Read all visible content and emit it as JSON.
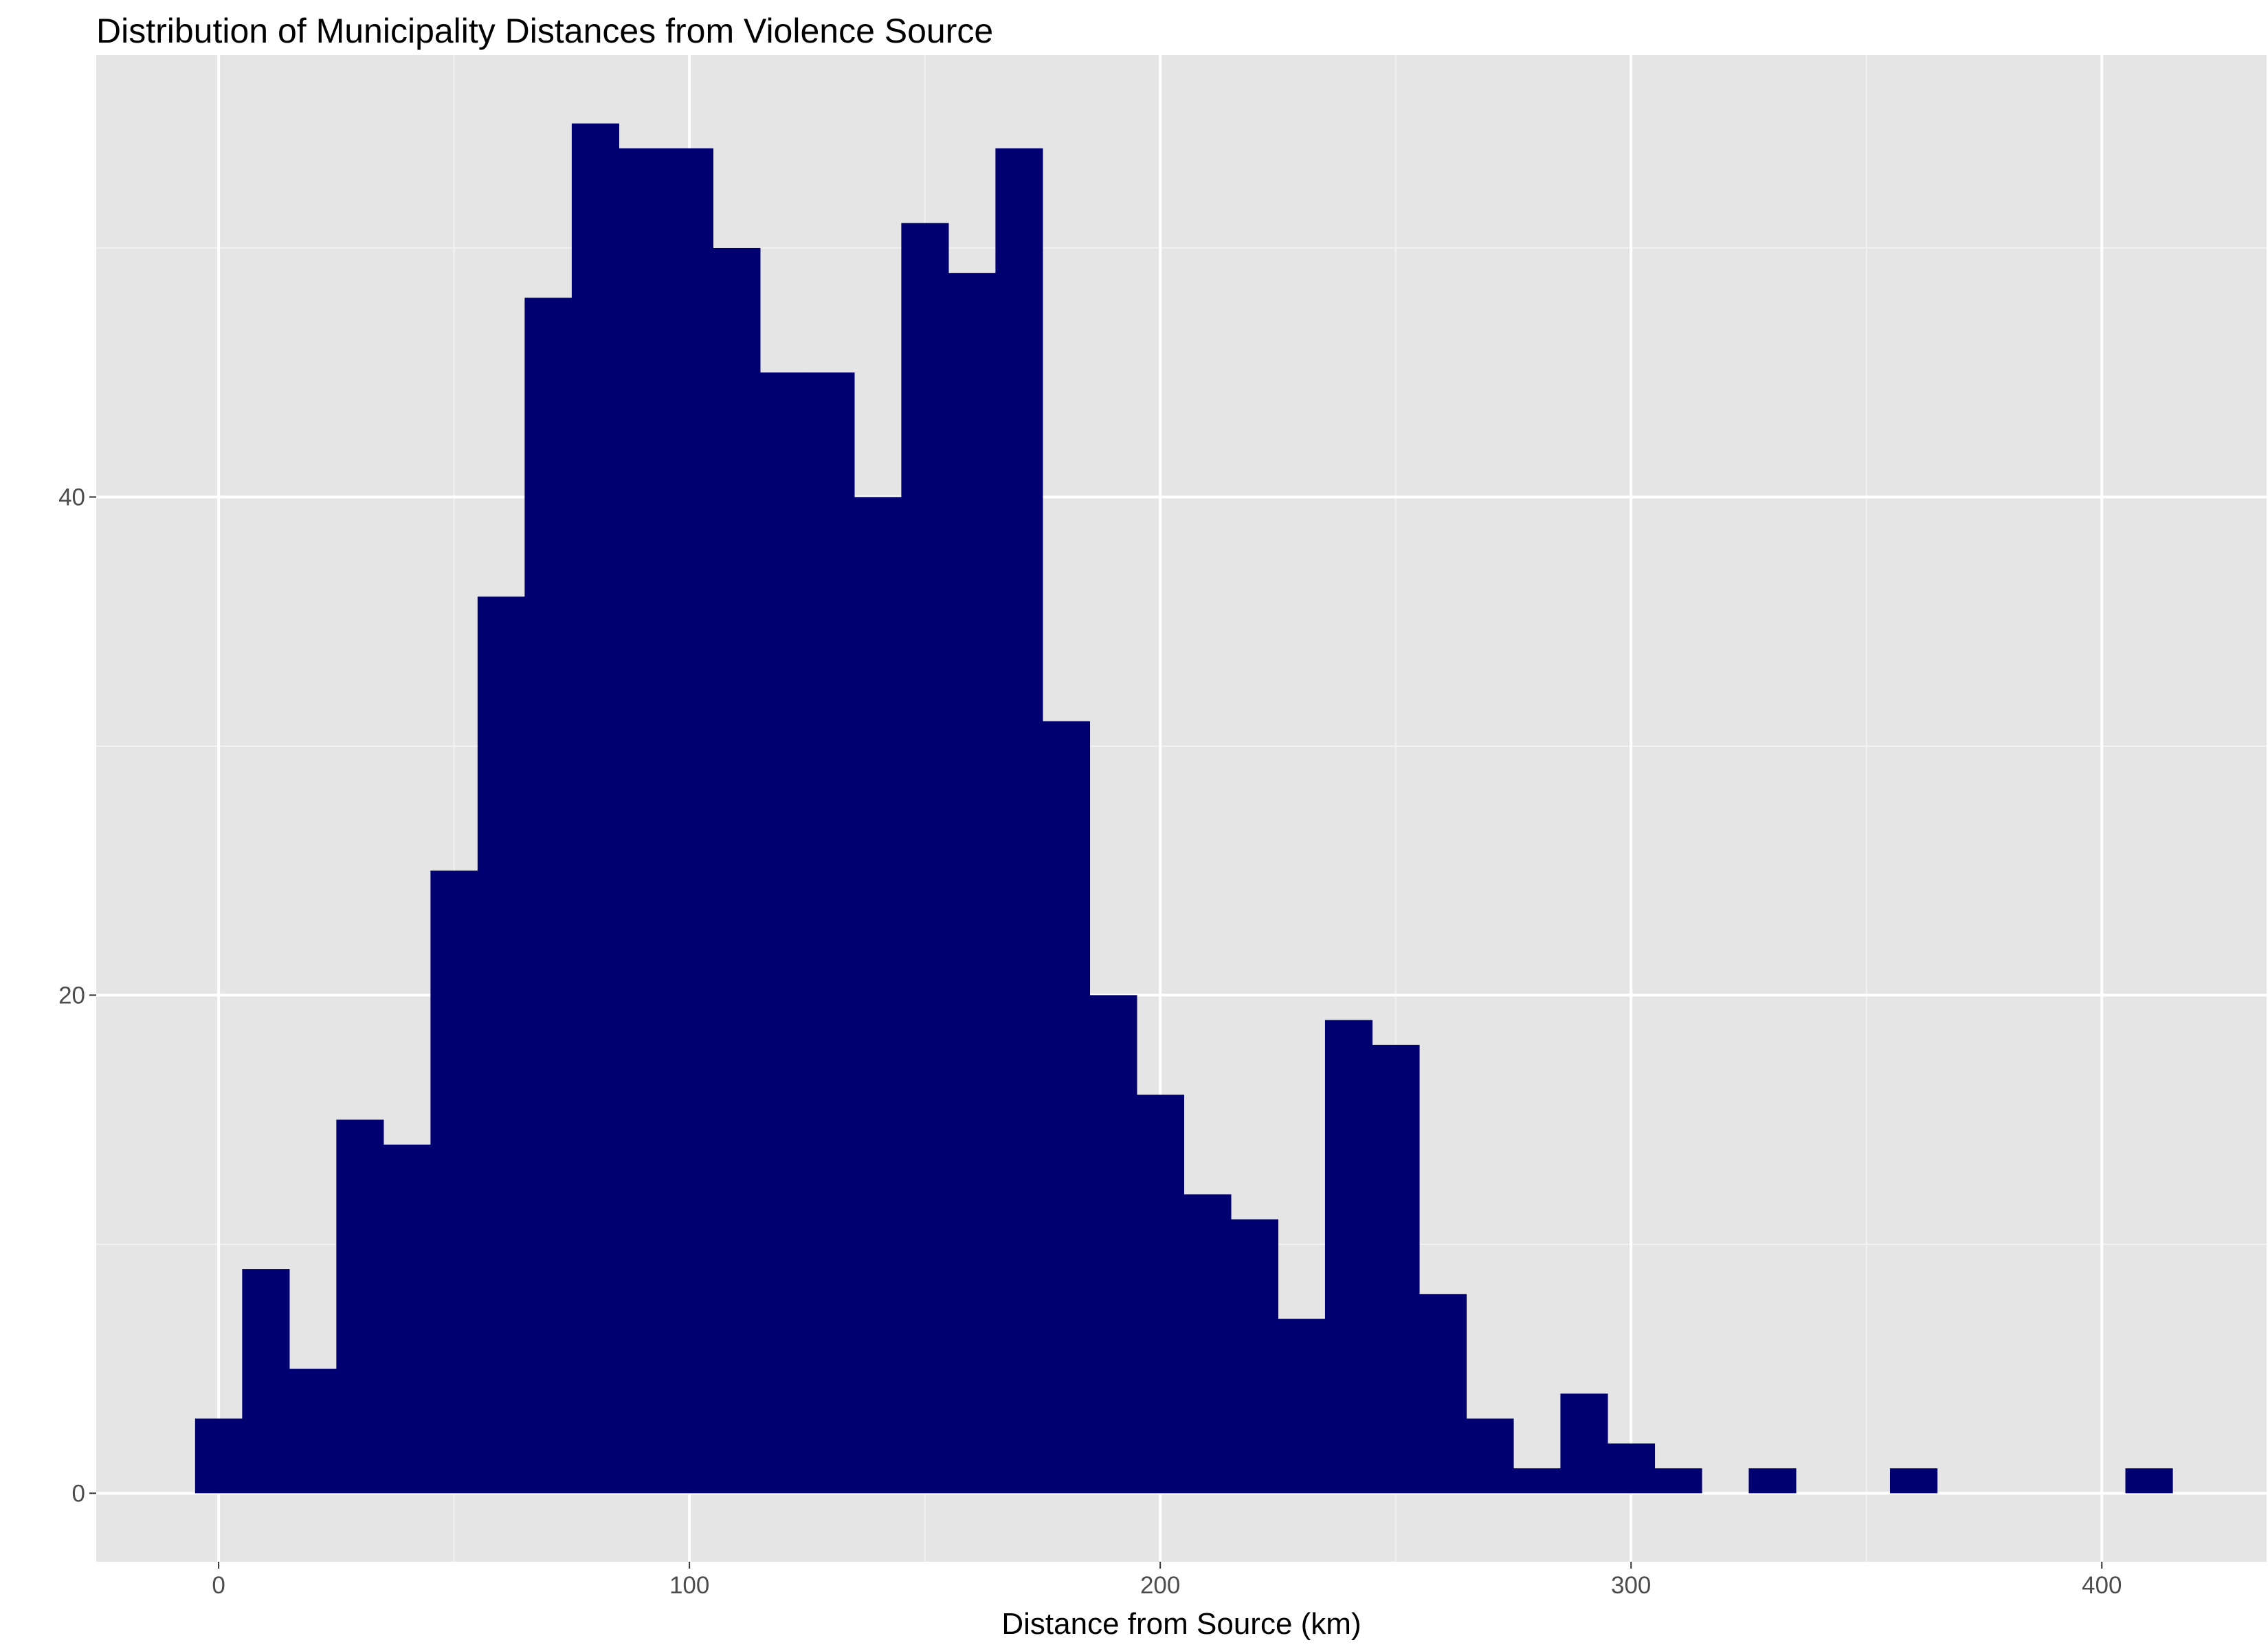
{
  "chart_data": {
    "type": "bar",
    "subtype": "histogram",
    "title": "Distribution of Municipality Distances from Violence Source",
    "xlabel": "Distance from Source (km)",
    "ylabel": "",
    "bin_width": 10,
    "bin_centers": [
      0,
      10,
      20,
      30,
      40,
      50,
      60,
      70,
      80,
      90,
      100,
      110,
      120,
      130,
      140,
      150,
      160,
      170,
      180,
      190,
      200,
      210,
      220,
      230,
      240,
      250,
      260,
      270,
      280,
      290,
      300,
      310,
      320,
      330,
      340,
      350,
      360,
      370,
      380,
      390,
      400,
      410
    ],
    "values": [
      3,
      9,
      5,
      15,
      14,
      25,
      36,
      48,
      55,
      54,
      54,
      50,
      45,
      45,
      40,
      51,
      49,
      54,
      31,
      20,
      16,
      12,
      11,
      7,
      19,
      18,
      8,
      3,
      1,
      4,
      2,
      1,
      0,
      1,
      0,
      0,
      1,
      0,
      0,
      0,
      0,
      1
    ],
    "xlim": [
      -26,
      435
    ],
    "ylim": [
      -2.75,
      57.75
    ],
    "x_ticks": [
      0,
      100,
      200,
      300,
      400
    ],
    "x_tick_labels": [
      "0",
      "100",
      "200",
      "300",
      "400"
    ],
    "y_ticks": [
      0,
      20,
      40
    ],
    "y_tick_labels": [
      "0",
      "20",
      "40"
    ],
    "x_minor_ticks": [
      50,
      150,
      250,
      350
    ],
    "y_minor_ticks": [
      10,
      30,
      50
    ],
    "grid": true,
    "legend": "none",
    "colors": {
      "bar_fill": "#000070",
      "panel_background": "#e5e5e5",
      "grid_major": "#ffffff",
      "grid_minor": "#f2f2f2",
      "tick_text": "#4d4d4d",
      "tick_mark": "#333333"
    }
  }
}
